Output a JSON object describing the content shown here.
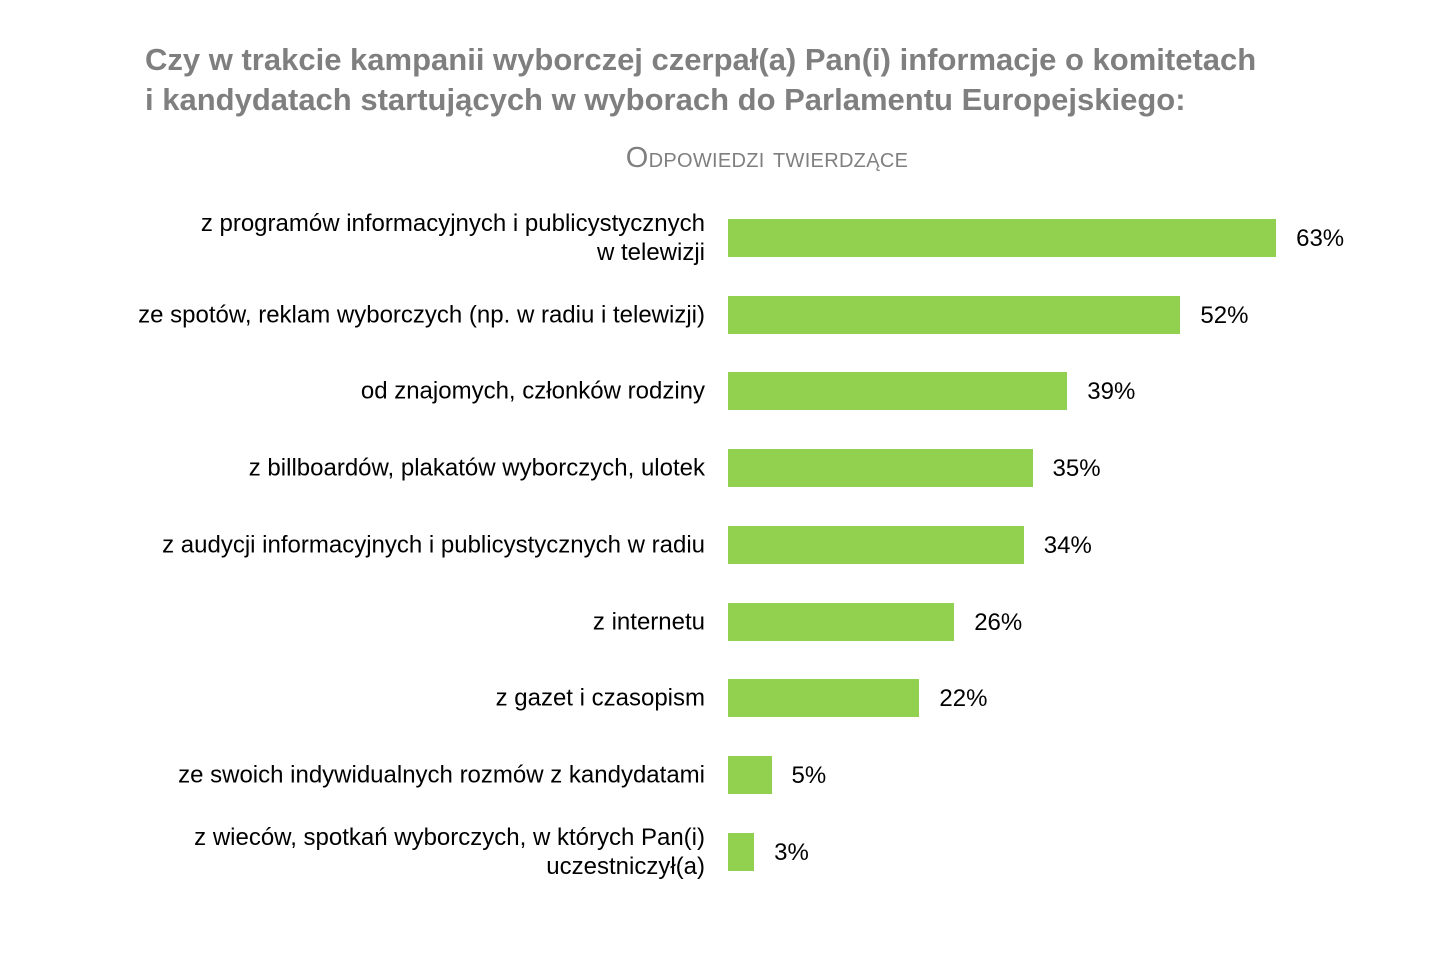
{
  "chart_data": {
    "type": "bar",
    "orientation": "horizontal",
    "title_lines": [
      "Czy w trakcie kampanii wyborczej czerpał(a) Pan(i) informacje o komitetach",
      "i kandydatach startujących w wyborach do Parlamentu Europejskiego:"
    ],
    "subtitle": "Odpowiedzi twierdzące",
    "categories": [
      [
        "z programów informacyjnych i publicystycznych",
        "w telewizji"
      ],
      [
        "ze spotów, reklam wyborczych (np. w radiu i telewizji)"
      ],
      [
        "od znajomych, członków rodziny"
      ],
      [
        "z billboardów, plakatów wyborczych, ulotek"
      ],
      [
        "z audycji informacyjnych i publicystycznych w radiu"
      ],
      [
        "z internetu"
      ],
      [
        "z gazet i czasopism"
      ],
      [
        "ze swoich indywidualnych rozmów z kandydatami"
      ],
      [
        "z wieców, spotkań wyborczych, w których Pan(i)",
        "uczestniczył(a)"
      ]
    ],
    "values": [
      63,
      52,
      39,
      35,
      34,
      26,
      22,
      5,
      3
    ],
    "value_labels": [
      "63%",
      "52%",
      "39%",
      "35%",
      "34%",
      "26%",
      "22%",
      "5%",
      "3%"
    ],
    "unit": "%",
    "xlim": [
      0,
      100
    ],
    "grid": false,
    "bar_color": "#92d050",
    "title_color": "#7f7f7f"
  }
}
